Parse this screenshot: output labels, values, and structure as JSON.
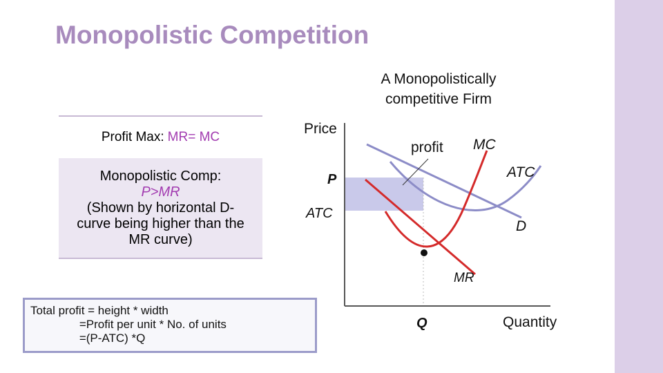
{
  "colors": {
    "side_bar": "#dccfe8",
    "title": "#a88bbd",
    "accent": "#a23bb0",
    "mr_curve": "#d42a2a",
    "purple_curves": "#8c8cc7",
    "profit_rect": "#c9c9ea"
  },
  "slide": {
    "title": "Monopolistic Competition",
    "chart_title_line1": "A Monopolistically",
    "chart_title_line2": "competitive Firm"
  },
  "table": {
    "row1_prefix": "Profit Max: ",
    "row1_highlight": "MR= MC",
    "row2_line1": "Monopolistic Comp:",
    "row2_highlight": "P>MR",
    "row2_line3": "(Shown by horizontal  D-",
    "row2_line4": "curve being higher than the",
    "row2_line5": "MR curve)"
  },
  "formula": {
    "line1": "Total profit = height * width",
    "line2": "               =Profit per unit * No. of units",
    "line3": "               =(P-ATC) *Q"
  },
  "diagram": {
    "y_axis_label": "Price",
    "x_axis_label": "Quantity",
    "p_label": "P",
    "atc_axis_label": "ATC",
    "q_label": "Q",
    "profit_label": "profit",
    "mc_label": "MC",
    "atc_curve_label": "ATC",
    "d_label": "D",
    "mr_label": "MR"
  }
}
